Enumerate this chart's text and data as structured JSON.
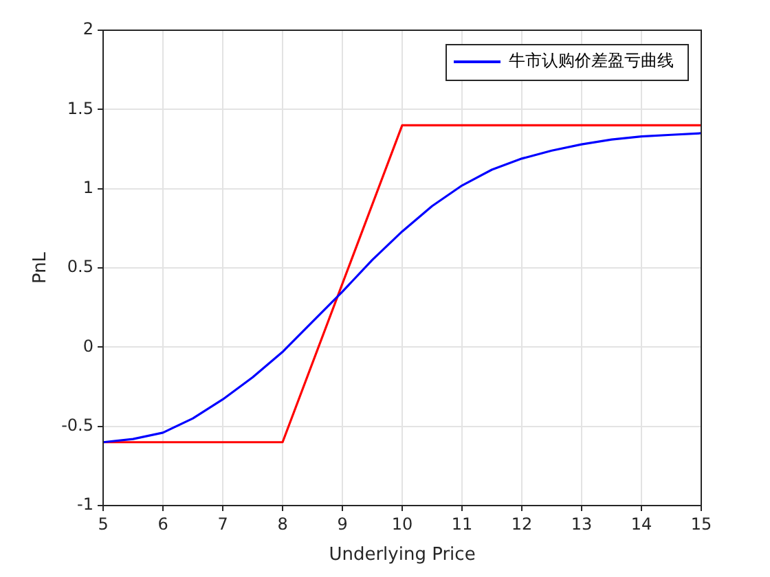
{
  "chart_data": {
    "type": "line",
    "xlabel": "Underlying Price",
    "ylabel": "PnL",
    "series": [
      {
        "name": "牛市认购价差盈亏曲线",
        "color": "#0000ff",
        "x": [
          5,
          5.5,
          6,
          6.5,
          7,
          7.5,
          8,
          8.5,
          9,
          9.5,
          10,
          10.5,
          11,
          11.5,
          12,
          12.5,
          13,
          13.5,
          14,
          14.5,
          15
        ],
        "values": [
          -0.6,
          -0.58,
          -0.54,
          -0.45,
          -0.33,
          -0.19,
          -0.03,
          0.16,
          0.35,
          0.55,
          0.73,
          0.89,
          1.02,
          1.12,
          1.19,
          1.24,
          1.28,
          1.31,
          1.33,
          1.34,
          1.35
        ]
      },
      {
        "color": "#ff0000",
        "x": [
          5,
          8,
          10,
          15
        ],
        "values": [
          -0.6,
          -0.6,
          1.4,
          1.4
        ]
      }
    ],
    "xlim": [
      5,
      15
    ],
    "xticks": [
      5,
      6,
      7,
      8,
      9,
      10,
      11,
      12,
      13,
      14,
      15
    ],
    "ylim": [
      -1,
      2
    ],
    "yticks": [
      -1,
      -0.5,
      0,
      0.5,
      1,
      1.5,
      2
    ],
    "grid": true,
    "legend": "top right",
    "marker": "none",
    "line_style": "solid"
  }
}
